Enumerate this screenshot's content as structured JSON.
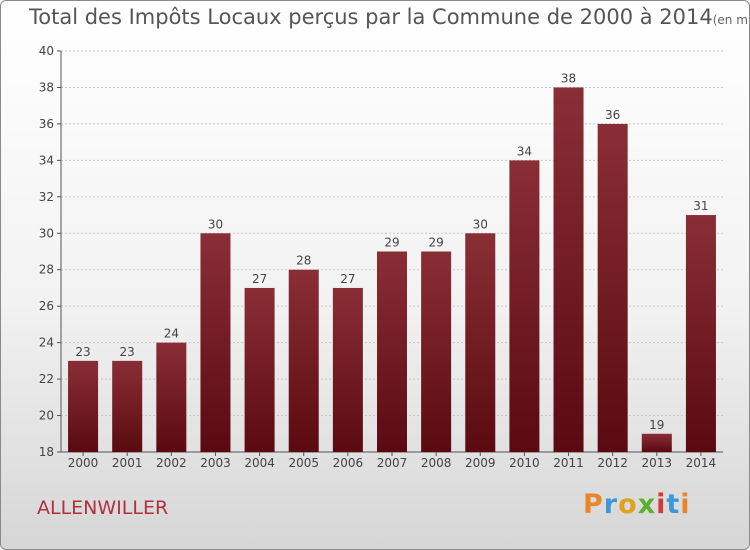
{
  "chart_data": {
    "type": "bar",
    "title": "Total des Impôts Locaux perçus par la Commune de 2000 à 2014",
    "unit_note": "(en milliers d'€)",
    "categories": [
      "2000",
      "2001",
      "2002",
      "2003",
      "2004",
      "2005",
      "2006",
      "2007",
      "2008",
      "2009",
      "2010",
      "2011",
      "2012",
      "2013",
      "2014"
    ],
    "values": [
      23,
      23,
      24,
      30,
      27,
      28,
      27,
      29,
      29,
      30,
      34,
      38,
      36,
      19,
      31
    ],
    "ylim": [
      18,
      40
    ],
    "yticks": [
      18,
      20,
      22,
      24,
      26,
      28,
      30,
      32,
      34,
      36,
      38,
      40
    ],
    "xlabel": "",
    "ylabel": "",
    "bar_color": "#7a1a22",
    "grid": true
  },
  "footer": {
    "commune": "ALLENWILLER",
    "logo_text": "Proxiti"
  },
  "colors": {
    "logo": [
      "#e8862a",
      "#3a9ad9",
      "#e0a020",
      "#5bb030",
      "#d03a3a",
      "#3a9ad9",
      "#e8862a"
    ]
  }
}
